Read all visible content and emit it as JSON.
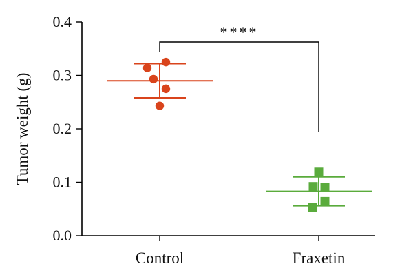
{
  "chart_data": {
    "type": "scatter",
    "title": "",
    "xlabel": "",
    "ylabel": "Tumor weight (g)",
    "ylim": [
      0.0,
      0.4
    ],
    "yticks": [
      "0.0",
      "0.1",
      "0.2",
      "0.3",
      "0.4"
    ],
    "categories": [
      "Control",
      "Fraxetin"
    ],
    "series": [
      {
        "category": "Control",
        "marker": "circle",
        "color": "#d9441c",
        "mean": 0.29,
        "sd": 0.032,
        "values": [
          0.325,
          0.314,
          0.293,
          0.275,
          0.243
        ]
      },
      {
        "category": "Fraxetin",
        "marker": "square",
        "color": "#5aab3c",
        "mean": 0.083,
        "sd": 0.027,
        "values": [
          0.119,
          0.092,
          0.09,
          0.064,
          0.053
        ]
      }
    ],
    "annotation": {
      "text": "****",
      "between": [
        "Control",
        "Fraxetin"
      ]
    },
    "grid": false
  }
}
